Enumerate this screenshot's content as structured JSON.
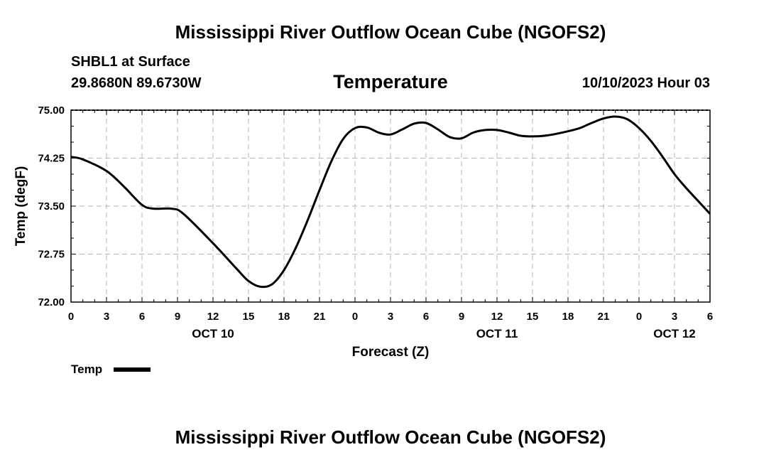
{
  "header": {
    "title": "Mississippi River Outflow Ocean Cube (NGOFS2)",
    "station": "SHBL1 at Surface",
    "location": "29.8680N  89.6730W",
    "parameter": "Temperature",
    "datetime": "10/10/2023 Hour 03"
  },
  "footer": {
    "title": "Mississippi River Outflow Ocean Cube (NGOFS2)"
  },
  "chart_data": {
    "type": "line",
    "title": "Temperature",
    "xlabel": "Forecast (Z)",
    "ylabel": "Temp (degF)",
    "x_unit": "forecast hours from 00Z Oct 10",
    "xlim": [
      0,
      54
    ],
    "ylim": [
      72.0,
      75.0
    ],
    "grid": true,
    "legend": "bottom-left",
    "y_ticks": [
      72.0,
      72.75,
      73.5,
      74.25,
      75.0
    ],
    "y_tick_labels": [
      "72.00",
      "72.75",
      "73.50",
      "74.25",
      "75.00"
    ],
    "x_ticks": [
      0,
      3,
      6,
      9,
      12,
      15,
      18,
      21,
      24,
      27,
      30,
      33,
      36,
      39,
      42,
      45,
      48,
      51,
      54
    ],
    "x_tick_labels": [
      "0",
      "3",
      "6",
      "9",
      "12",
      "15",
      "18",
      "21",
      "0",
      "3",
      "6",
      "9",
      "12",
      "15",
      "18",
      "21",
      "0",
      "3",
      "6"
    ],
    "day_labels": [
      {
        "hour": 12,
        "label": "OCT 10"
      },
      {
        "hour": 36,
        "label": "OCT 11"
      },
      {
        "hour": 51,
        "label": "OCT 12"
      }
    ],
    "series": [
      {
        "name": "Temp",
        "color": "#000000",
        "x": [
          0,
          1,
          3,
          4.5,
          6,
          7,
          8.5,
          9.5,
          12,
          14,
          15,
          16,
          17,
          18,
          19,
          20,
          21,
          22,
          23,
          24,
          25,
          26,
          27,
          28,
          29,
          30,
          31,
          32,
          33,
          34,
          35,
          36,
          37,
          38,
          39,
          40,
          41,
          42,
          43,
          44,
          45,
          46,
          47,
          48,
          49,
          50,
          51,
          52,
          53,
          54
        ],
        "values": [
          74.27,
          74.23,
          74.05,
          73.8,
          73.52,
          73.46,
          73.46,
          73.38,
          72.92,
          72.52,
          72.33,
          72.24,
          72.28,
          72.5,
          72.85,
          73.28,
          73.75,
          74.2,
          74.55,
          74.72,
          74.73,
          74.65,
          74.62,
          74.7,
          74.79,
          74.8,
          74.7,
          74.58,
          74.56,
          74.65,
          74.69,
          74.69,
          74.65,
          74.6,
          74.59,
          74.6,
          74.63,
          74.67,
          74.72,
          74.8,
          74.87,
          74.9,
          74.86,
          74.72,
          74.52,
          74.27,
          74.0,
          73.78,
          73.58,
          73.38
        ]
      }
    ]
  }
}
